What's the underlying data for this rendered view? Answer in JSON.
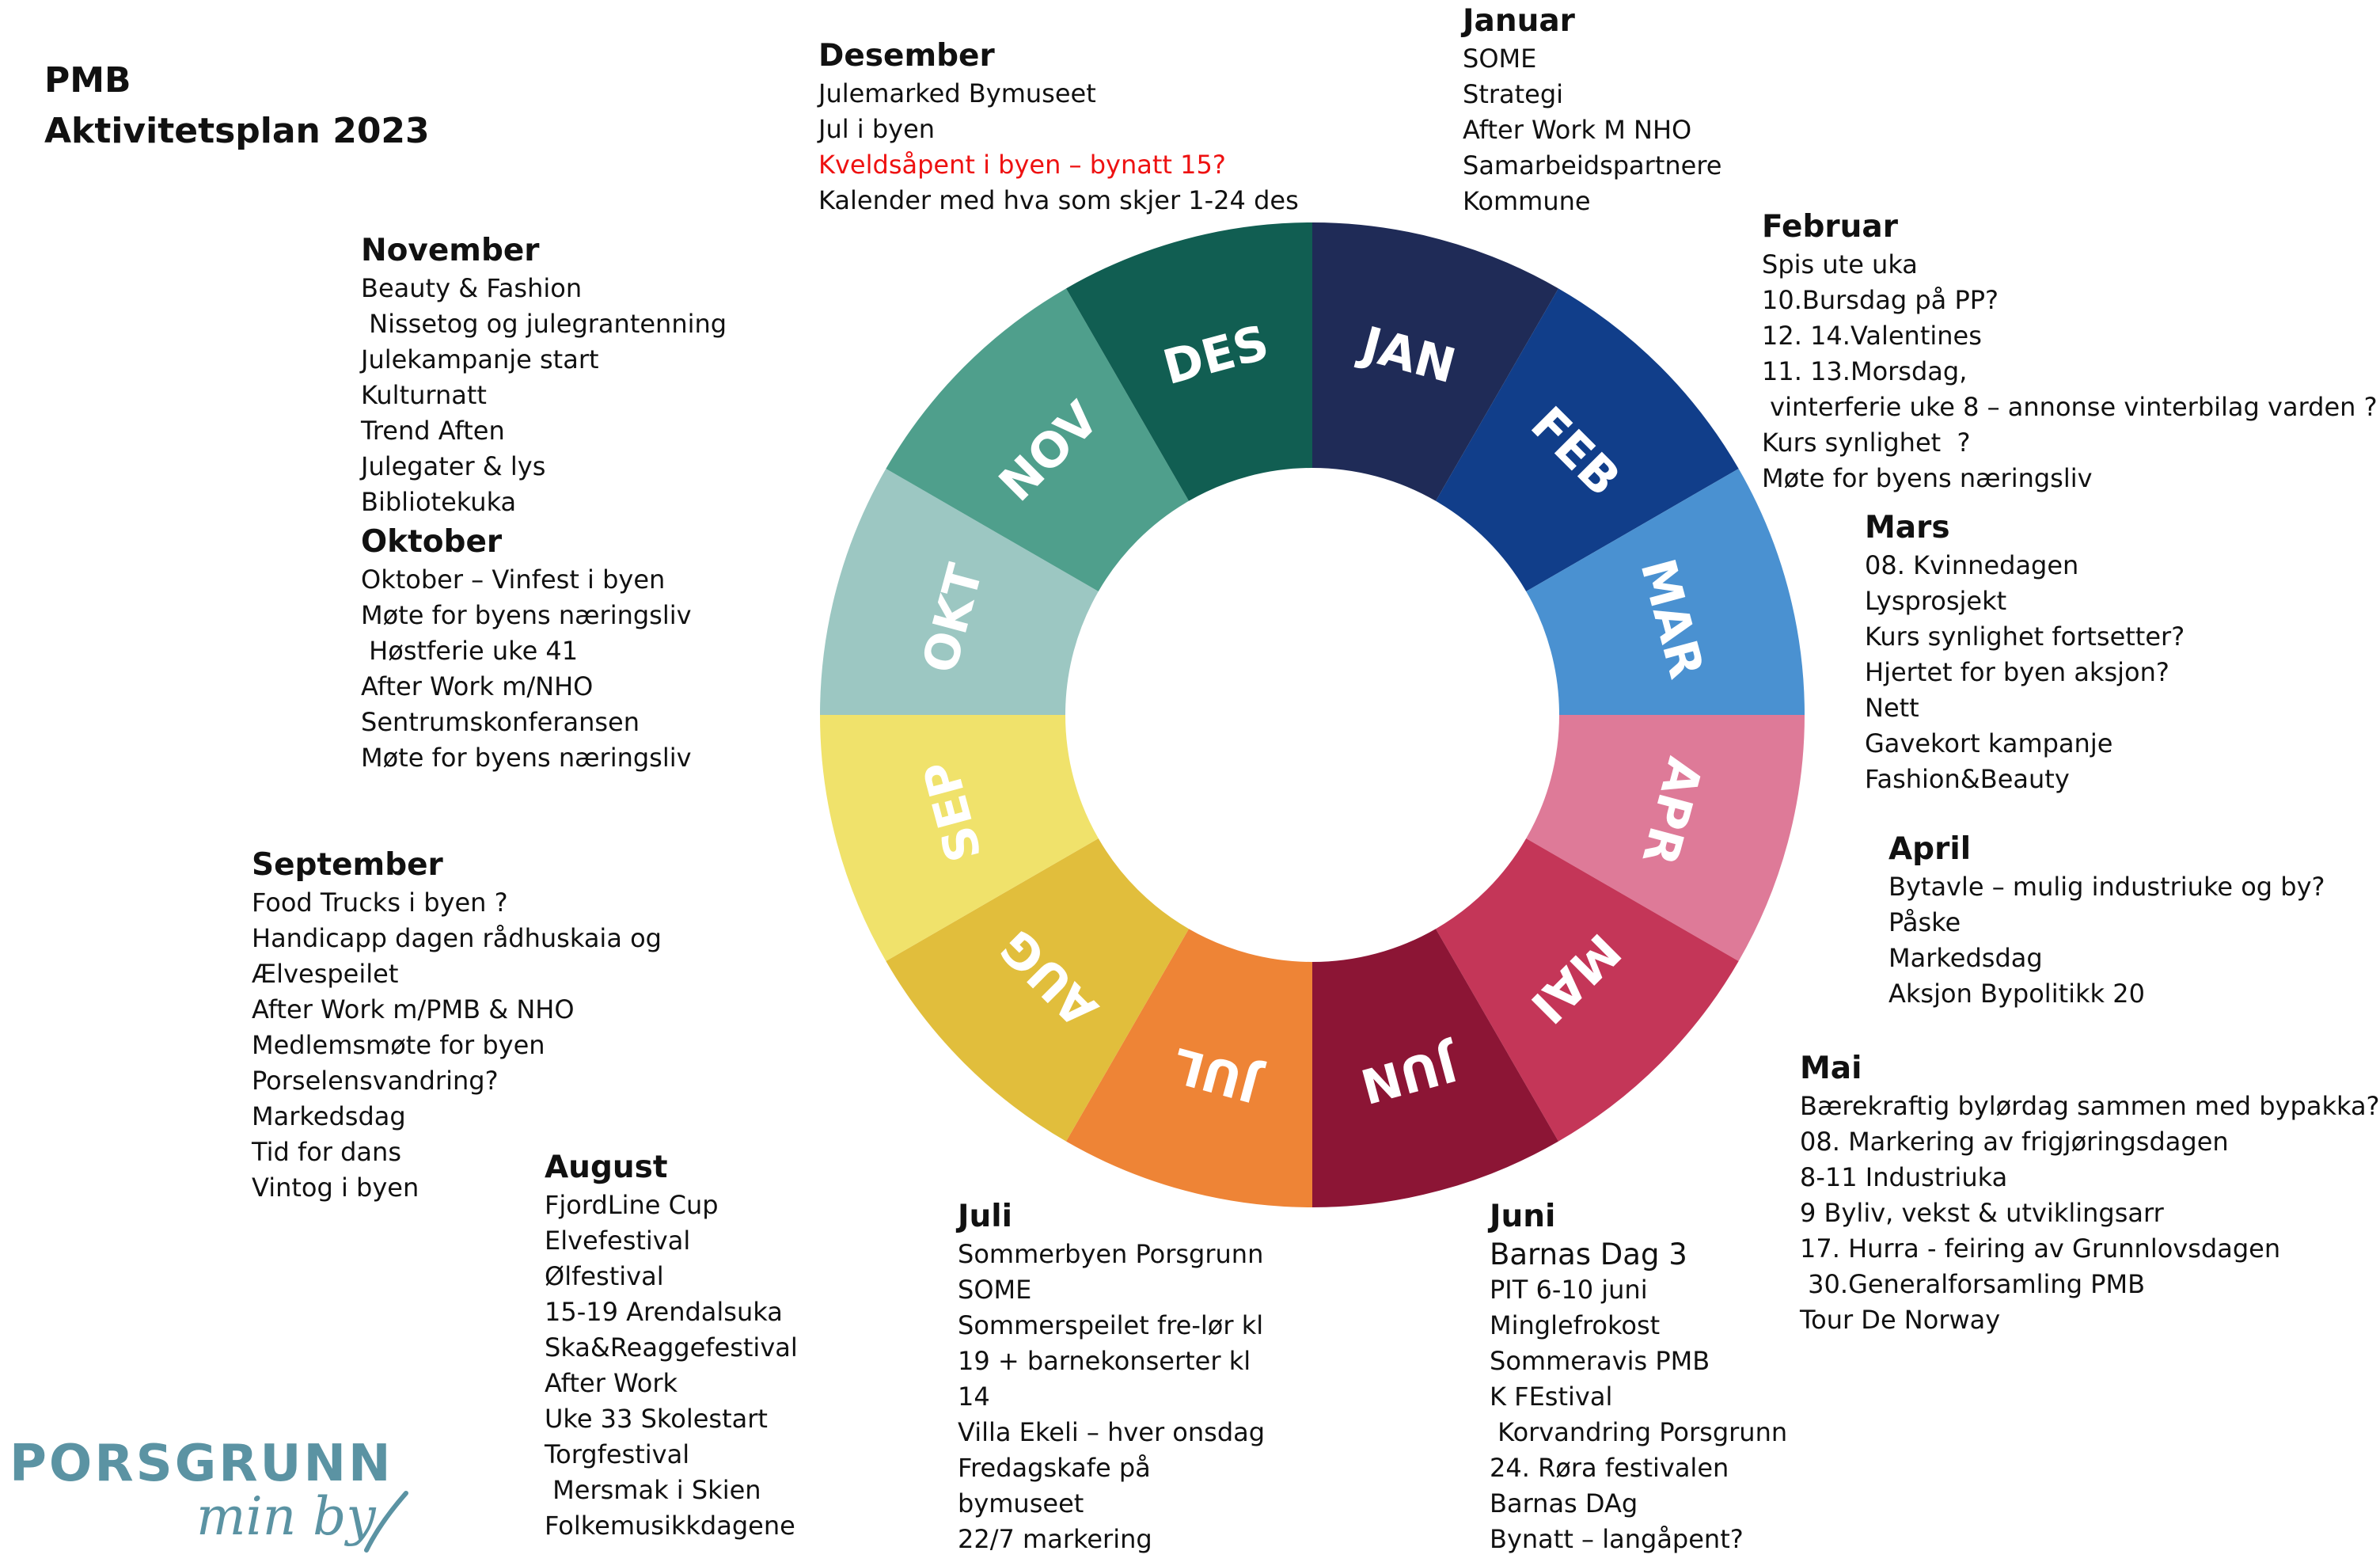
{
  "header": {
    "line1": "PMB",
    "line2": "Aktivitetsplan 2023"
  },
  "wheel": {
    "segments": [
      {
        "abbr": "JAN",
        "color": "#1f2b57"
      },
      {
        "abbr": "FEB",
        "color": "#113e8a"
      },
      {
        "abbr": "MAR",
        "color": "#4a91d1"
      },
      {
        "abbr": "APR",
        "color": "#de7a98"
      },
      {
        "abbr": "MAI",
        "color": "#c43658"
      },
      {
        "abbr": "JUN",
        "color": "#8c1535"
      },
      {
        "abbr": "JUL",
        "color": "#ee8436"
      },
      {
        "abbr": "AUG",
        "color": "#e1be3c"
      },
      {
        "abbr": "SEP",
        "color": "#f0e26b"
      },
      {
        "abbr": "OKT",
        "color": "#9cc7c2"
      },
      {
        "abbr": "NOV",
        "color": "#4f9f8c"
      },
      {
        "abbr": "DES",
        "color": "#115e52"
      }
    ]
  },
  "months": [
    {
      "id": "januar",
      "heading": "Januar",
      "items": [
        {
          "text": "SOME"
        },
        {
          "text": "Strategi"
        },
        {
          "text": "After Work M NHO"
        },
        {
          "text": "Samarbeidspartnere"
        },
        {
          "text": "Kommune"
        }
      ]
    },
    {
      "id": "februar",
      "heading": "Februar",
      "items": [
        {
          "text": "Spis ute uka"
        },
        {
          "text": "10.Bursdag på PP?"
        },
        {
          "text": "12. 14.Valentines"
        },
        {
          "text": "11. 13.Morsdag,"
        },
        {
          "text": " vinterferie uke 8 – annonse vinterbilag varden ?"
        },
        {
          "text": "Kurs synlighet  ?"
        },
        {
          "text": "Møte for byens næringsliv"
        }
      ]
    },
    {
      "id": "mars",
      "heading": "Mars",
      "items": [
        {
          "text": "08. Kvinnedagen"
        },
        {
          "text": "Lysprosjekt"
        },
        {
          "text": "Kurs synlighet fortsetter?"
        },
        {
          "text": "Hjertet for byen aksjon?"
        },
        {
          "text": "Nett"
        },
        {
          "text": "Gavekort kampanje"
        },
        {
          "text": "Fashion&Beauty"
        }
      ]
    },
    {
      "id": "april",
      "heading": "April",
      "items": [
        {
          "text": "Bytavle – mulig industriuke og by?"
        },
        {
          "text": "Påske"
        },
        {
          "text": "Markedsdag"
        },
        {
          "text": "Aksjon Bypolitikk 20"
        }
      ]
    },
    {
      "id": "mai",
      "heading": "Mai",
      "items": [
        {
          "text": "Bærekraftig bylørdag sammen med bypakka?"
        },
        {
          "text": "08. Markering av frigjøringsdagen"
        },
        {
          "text": "8-11 Industriuka"
        },
        {
          "text": "9 Byliv, vekst & utviklingsarr"
        },
        {
          "text": "17. Hurra - feiring av Grunnlovsdagen"
        },
        {
          "text": " 30.Generalforsamling PMB"
        },
        {
          "text": "Tour De Norway"
        }
      ]
    },
    {
      "id": "juni",
      "heading": "Juni",
      "items": [
        {
          "text": "Barnas Dag 3",
          "big": true
        },
        {
          "text": "PIT 6-10 juni"
        },
        {
          "text": "Minglefrokost"
        },
        {
          "text": "Sommeravis PMB"
        },
        {
          "text": "K FEstival"
        },
        {
          "text": " Korvandring Porsgrunn"
        },
        {
          "text": "24. Røra festivalen"
        },
        {
          "text": "Barnas DAg"
        },
        {
          "text": "Bynatt – langåpent?"
        }
      ]
    },
    {
      "id": "juli",
      "heading": "Juli",
      "items": [
        {
          "text": "Sommerbyen Porsgrunn"
        },
        {
          "text": "SOME"
        },
        {
          "text": "Sommerspeilet fre-lør kl"
        },
        {
          "text": "19 + barnekonserter kl"
        },
        {
          "text": "14"
        },
        {
          "text": "Villa Ekeli – hver onsdag"
        },
        {
          "text": "Fredagskafe på"
        },
        {
          "text": "bymuseet"
        },
        {
          "text": "22/7 markering"
        }
      ]
    },
    {
      "id": "august",
      "heading": "August",
      "items": [
        {
          "text": "FjordLine Cup"
        },
        {
          "text": "Elvefestival"
        },
        {
          "text": "Ølfestival"
        },
        {
          "text": "15-19 Arendalsuka"
        },
        {
          "text": "Ska&Reaggefestival"
        },
        {
          "text": "After Work"
        },
        {
          "text": "Uke 33 Skolestart"
        },
        {
          "text": "Torgfestival"
        },
        {
          "text": " Mersmak i Skien"
        },
        {
          "text": "Folkemusikkdagene"
        }
      ]
    },
    {
      "id": "september",
      "heading": "September",
      "items": [
        {
          "text": "Food Trucks i byen ?"
        },
        {
          "text": "Handicapp dagen rådhuskaia og"
        },
        {
          "text": "Ælvespeilet"
        },
        {
          "text": "After Work m/PMB & NHO"
        },
        {
          "text": "Medlemsmøte for byen"
        },
        {
          "text": "Porselensvandring?"
        },
        {
          "text": "Markedsdag"
        },
        {
          "text": "Tid for dans"
        },
        {
          "text": "Vintog i byen"
        }
      ]
    },
    {
      "id": "oktober",
      "heading": "Oktober",
      "items": [
        {
          "text": "Oktober – Vinfest i byen"
        },
        {
          "text": "Møte for byens næringsliv"
        },
        {
          "text": " Høstferie uke 41"
        },
        {
          "text": "After Work m/NHO"
        },
        {
          "text": "Sentrumskonferansen"
        },
        {
          "text": "Møte for byens næringsliv"
        }
      ]
    },
    {
      "id": "november",
      "heading": "November",
      "items": [
        {
          "text": "Beauty & Fashion"
        },
        {
          "text": " Nissetog og julegrantenning"
        },
        {
          "text": "Julekampanje start"
        },
        {
          "text": "Kulturnatt"
        },
        {
          "text": "Trend Aften"
        },
        {
          "text": "Julegater & lys"
        },
        {
          "text": "Bibliotekuka"
        }
      ]
    },
    {
      "id": "desember",
      "heading": "Desember",
      "items": [
        {
          "text": "Julemarked Bymuseet"
        },
        {
          "text": "Jul i byen"
        },
        {
          "text": "Kveldsåpent i byen – bynatt 15?",
          "red": true
        },
        {
          "text": "Kalender med hva som skjer 1-24 des"
        }
      ]
    }
  ],
  "logo": {
    "word": "PORSGRUNN",
    "tagline": "min by",
    "color": "#5b93a3"
  }
}
